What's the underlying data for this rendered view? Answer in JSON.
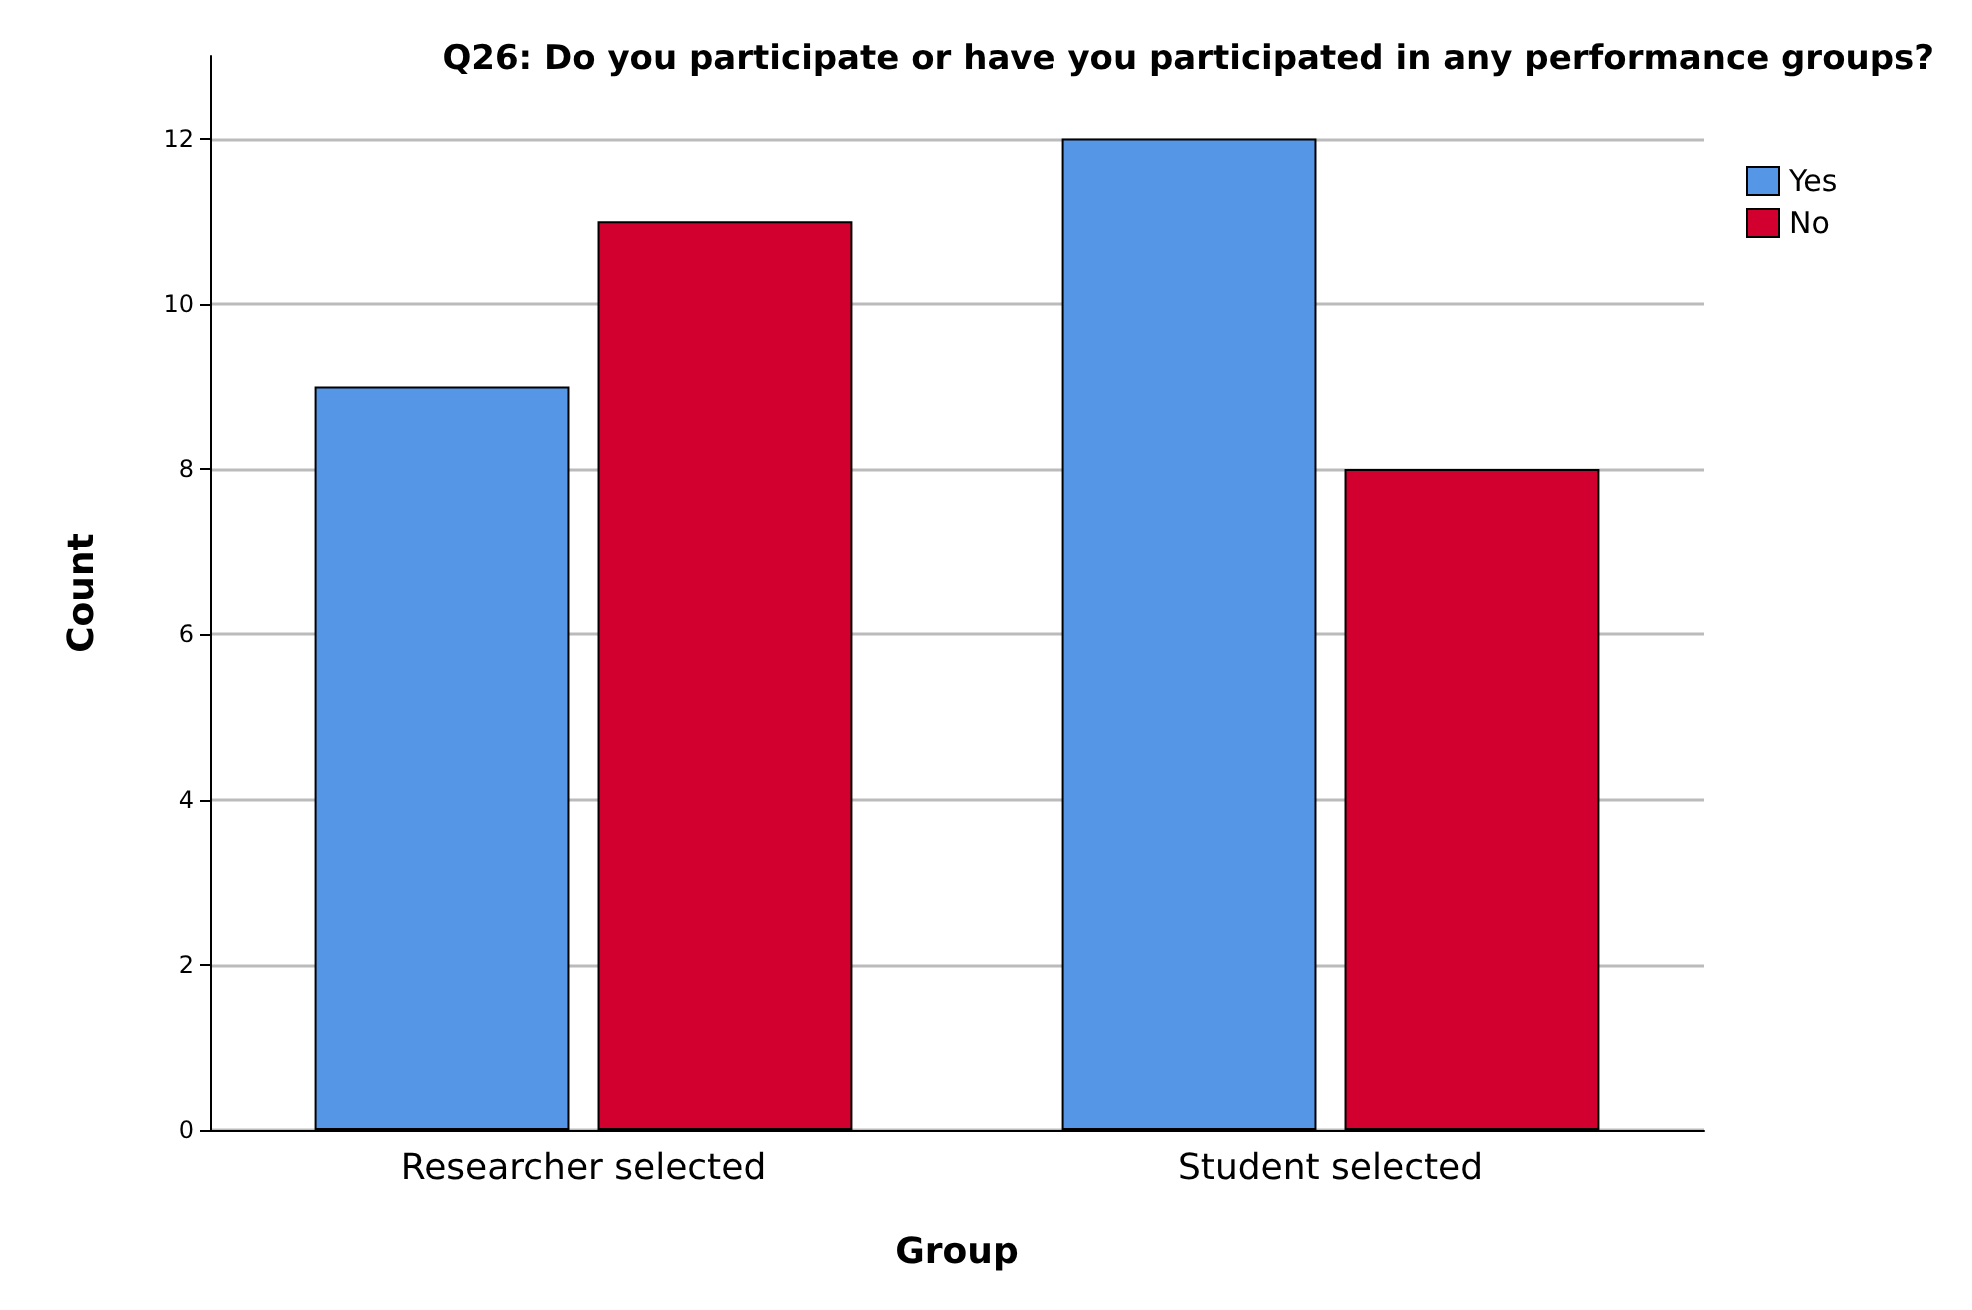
{
  "chart_data": {
    "type": "bar",
    "title": "Q26: Do you participate or have you participated in any performance groups?",
    "xlabel": "Group",
    "ylabel": "Count",
    "categories": [
      "Researcher selected",
      "Student selected"
    ],
    "series": [
      {
        "name": "Yes",
        "color": "#5596e6",
        "values": [
          9,
          12
        ]
      },
      {
        "name": "No",
        "color": "#d2002e",
        "values": [
          11,
          8
        ]
      }
    ],
    "ylim": [
      0,
      13
    ],
    "yticks": [
      0,
      2,
      4,
      6,
      8,
      10,
      12
    ],
    "grid": "y",
    "legend": "top right"
  }
}
